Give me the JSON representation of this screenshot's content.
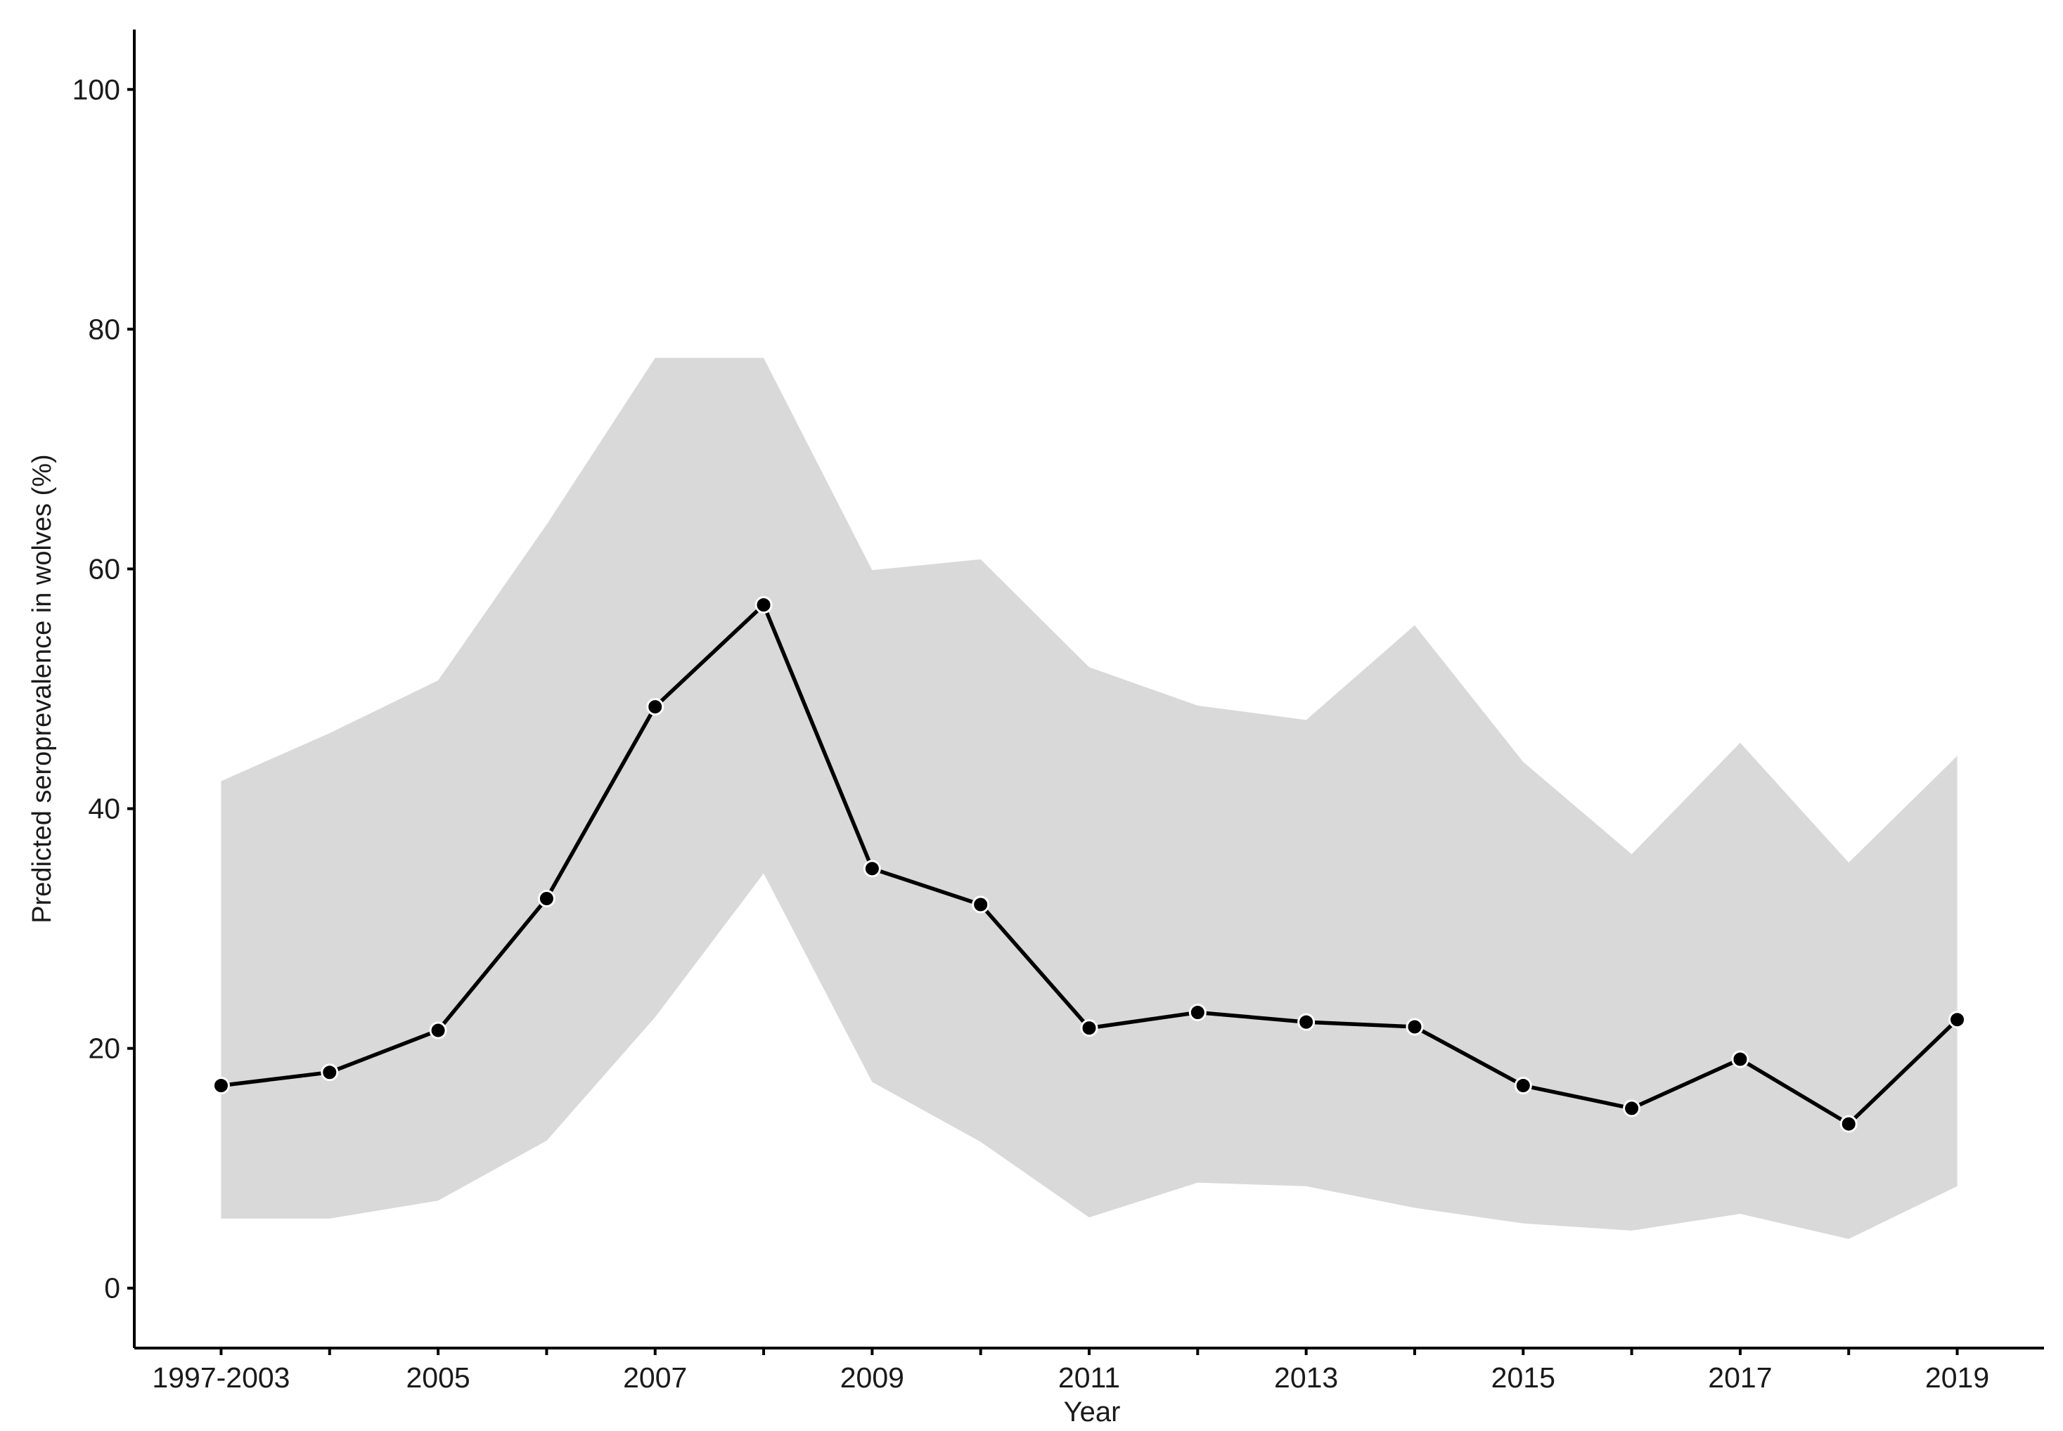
{
  "chart_data": {
    "type": "line",
    "x_label": "Year",
    "y_label": "Predicted seroprevalence in wolves (%)",
    "categories": [
      "1997-2003",
      null,
      "2005",
      null,
      "2007",
      null,
      "2009",
      null,
      "2011",
      null,
      "2013",
      null,
      "2015",
      null,
      "2017",
      null,
      "2019"
    ],
    "values": [
      16.9,
      18,
      21.5,
      32.5,
      48.5,
      57,
      35,
      32,
      21.7,
      23,
      22.2,
      21.8,
      16.9,
      15,
      19.1,
      13.7,
      22.4
    ],
    "upper": [
      42.3,
      46.3,
      50.7,
      63.7,
      77.6,
      77.6,
      59.9,
      60.8,
      51.8,
      48.6,
      47.4,
      55.3,
      43.9,
      36.2,
      45.5,
      35.5,
      44.4
    ],
    "lower": [
      5.8,
      5.8,
      7.3,
      12.3,
      22.6,
      34.6,
      17.2,
      12.2,
      5.9,
      8.8,
      8.5,
      6.7,
      5.4,
      4.8,
      6.2,
      4.1,
      8.5
    ],
    "color": "#000000",
    "band_color": "#d9d9d9",
    "ylim": [
      -5,
      105
    ],
    "yticks": [
      0,
      20,
      40,
      60,
      80,
      100
    ],
    "grid": false
  }
}
